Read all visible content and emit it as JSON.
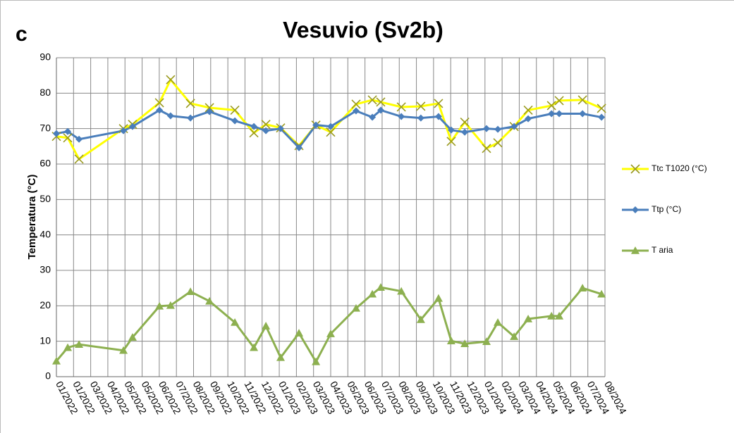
{
  "panel_label": "c",
  "chart_data": {
    "type": "line",
    "title": "Vesuvio (Sv2b)",
    "y_label": "Temperatura (°C)",
    "grid": true,
    "xlim": [
      0,
      32
    ],
    "xticks": [
      {
        "value": 0,
        "label": "01/2022"
      },
      {
        "value": 1,
        "label": "01/2022"
      },
      {
        "value": 2,
        "label": "03/2022"
      },
      {
        "value": 3,
        "label": "04/2022"
      },
      {
        "value": 4,
        "label": "05/2022"
      },
      {
        "value": 5,
        "label": "05/2022"
      },
      {
        "value": 6,
        "label": "06/2022"
      },
      {
        "value": 7,
        "label": "07/2022"
      },
      {
        "value": 8,
        "label": "08/2022"
      },
      {
        "value": 9,
        "label": "09/2022"
      },
      {
        "value": 10,
        "label": "10/2022"
      },
      {
        "value": 11,
        "label": "11/2022"
      },
      {
        "value": 12,
        "label": "12/2022"
      },
      {
        "value": 13,
        "label": "01/2023"
      },
      {
        "value": 14,
        "label": "02/2023"
      },
      {
        "value": 15,
        "label": "03/2023"
      },
      {
        "value": 16,
        "label": "04/2023"
      },
      {
        "value": 17,
        "label": "05/2023"
      },
      {
        "value": 18,
        "label": "06/2023"
      },
      {
        "value": 19,
        "label": "07/2023"
      },
      {
        "value": 20,
        "label": "08/2023"
      },
      {
        "value": 21,
        "label": "09/2023"
      },
      {
        "value": 22,
        "label": "10/2023"
      },
      {
        "value": 23,
        "label": "11/2023"
      },
      {
        "value": 24,
        "label": "12/2023"
      },
      {
        "value": 25,
        "label": "01/2024"
      },
      {
        "value": 26,
        "label": "02/2024"
      },
      {
        "value": 27,
        "label": "03/2024"
      },
      {
        "value": 28,
        "label": "04/2024"
      },
      {
        "value": 29,
        "label": "05/2024"
      },
      {
        "value": 30,
        "label": "06/2024"
      },
      {
        "value": 31,
        "label": "07/2024"
      },
      {
        "value": 32,
        "label": "08/2024"
      }
    ],
    "ylim": [
      0,
      90
    ],
    "yticks": [
      0,
      10,
      20,
      30,
      40,
      50,
      60,
      70,
      80,
      90
    ],
    "x": [
      0,
      0.66,
      1.32,
      3.91,
      4.44,
      6.01,
      6.66,
      7.82,
      8.93,
      10.41,
      11.52,
      12.22,
      13.08,
      14.15,
      15.14,
      16.0,
      17.48,
      18.43,
      18.92,
      20.12,
      21.26,
      22.29,
      23.03,
      23.82,
      25.09,
      25.75,
      26.7,
      27.52,
      28.88,
      29.33,
      30.69,
      31.8
    ],
    "series": [
      {
        "name": "Ttc T1020 (°C)",
        "color": "#ffff00",
        "marker": "x",
        "values": [
          67.8,
          67.4,
          61.4,
          70.0,
          71.2,
          77.3,
          83.8,
          77.1,
          75.9,
          75.2,
          68.8,
          71.2,
          70.2,
          65.2,
          71.0,
          69.0,
          76.9,
          78.1,
          77.5,
          76.1,
          76.3,
          77.1,
          66.4,
          71.8,
          64.4,
          66.0,
          70.6,
          75.2,
          76.5,
          77.9,
          78.1,
          75.7
        ]
      },
      {
        "name": "Ttp (°C)",
        "color": "#4a7ebb",
        "marker": "diamond",
        "values": [
          68.6,
          69.2,
          67.0,
          69.4,
          70.6,
          75.2,
          73.6,
          73.0,
          74.8,
          72.2,
          70.6,
          69.4,
          70.0,
          64.6,
          71.0,
          70.6,
          75.0,
          73.2,
          75.2,
          73.4,
          73.0,
          73.4,
          69.6,
          69.0,
          70.0,
          69.8,
          70.6,
          72.8,
          74.2,
          74.2,
          74.2,
          73.2
        ]
      },
      {
        "name": "T aria",
        "color": "#8db050",
        "marker": "triangle",
        "values": [
          4.4,
          8.2,
          9.1,
          7.4,
          11.1,
          19.9,
          20.1,
          24.0,
          21.3,
          15.3,
          8.2,
          14.3,
          5.4,
          12.3,
          4.2,
          12.1,
          19.3,
          23.3,
          25.2,
          24.1,
          16.1,
          22.1,
          10.1,
          9.3,
          9.9,
          15.3,
          11.3,
          16.3,
          17.1,
          17.1,
          25.0,
          23.3
        ]
      }
    ]
  }
}
